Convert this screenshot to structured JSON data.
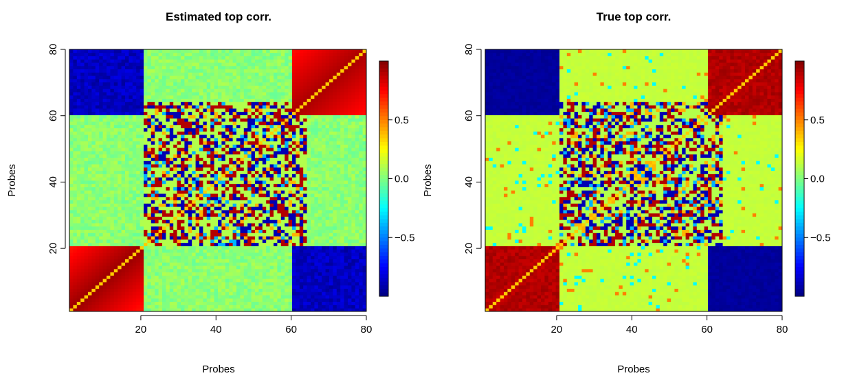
{
  "chart_data": [
    {
      "type": "heatmap",
      "title": "Estimated top corr.",
      "xlabel": "Probes",
      "ylabel": "Probes",
      "xlim": [
        1,
        80
      ],
      "ylim": [
        1,
        80
      ],
      "x_ticks": [
        "20",
        "40",
        "60",
        "80"
      ],
      "y_ticks": [
        "20",
        "40",
        "60",
        "80"
      ],
      "colorbar": {
        "ticks": [
          "−0.5",
          "0.0",
          "0.5"
        ],
        "tick_values": [
          -0.5,
          0.0,
          0.5
        ],
        "range": [
          -1,
          1
        ]
      },
      "blocks": {
        "positive_cluster": [
          1,
          20
        ],
        "negative_cluster": [
          61,
          80
        ],
        "noise_block": [
          21,
          64
        ],
        "diagonal_value": 0.35
      },
      "estimated": true
    },
    {
      "type": "heatmap",
      "title": "True top corr.",
      "xlabel": "Probes",
      "ylabel": "Probes",
      "xlim": [
        1,
        80
      ],
      "ylim": [
        1,
        80
      ],
      "x_ticks": [
        "20",
        "40",
        "60",
        "80"
      ],
      "y_ticks": [
        "20",
        "40",
        "60",
        "80"
      ],
      "colorbar": {
        "ticks": [
          "−0.5",
          "0.0",
          "0.5"
        ],
        "tick_values": [
          -0.5,
          0.0,
          0.5
        ],
        "range": [
          -1,
          1
        ]
      },
      "blocks": {
        "positive_cluster": [
          1,
          20
        ],
        "negative_cluster": [
          61,
          80
        ],
        "noise_block": [
          21,
          64
        ],
        "diagonal_value": 0.35
      },
      "estimated": false
    }
  ]
}
